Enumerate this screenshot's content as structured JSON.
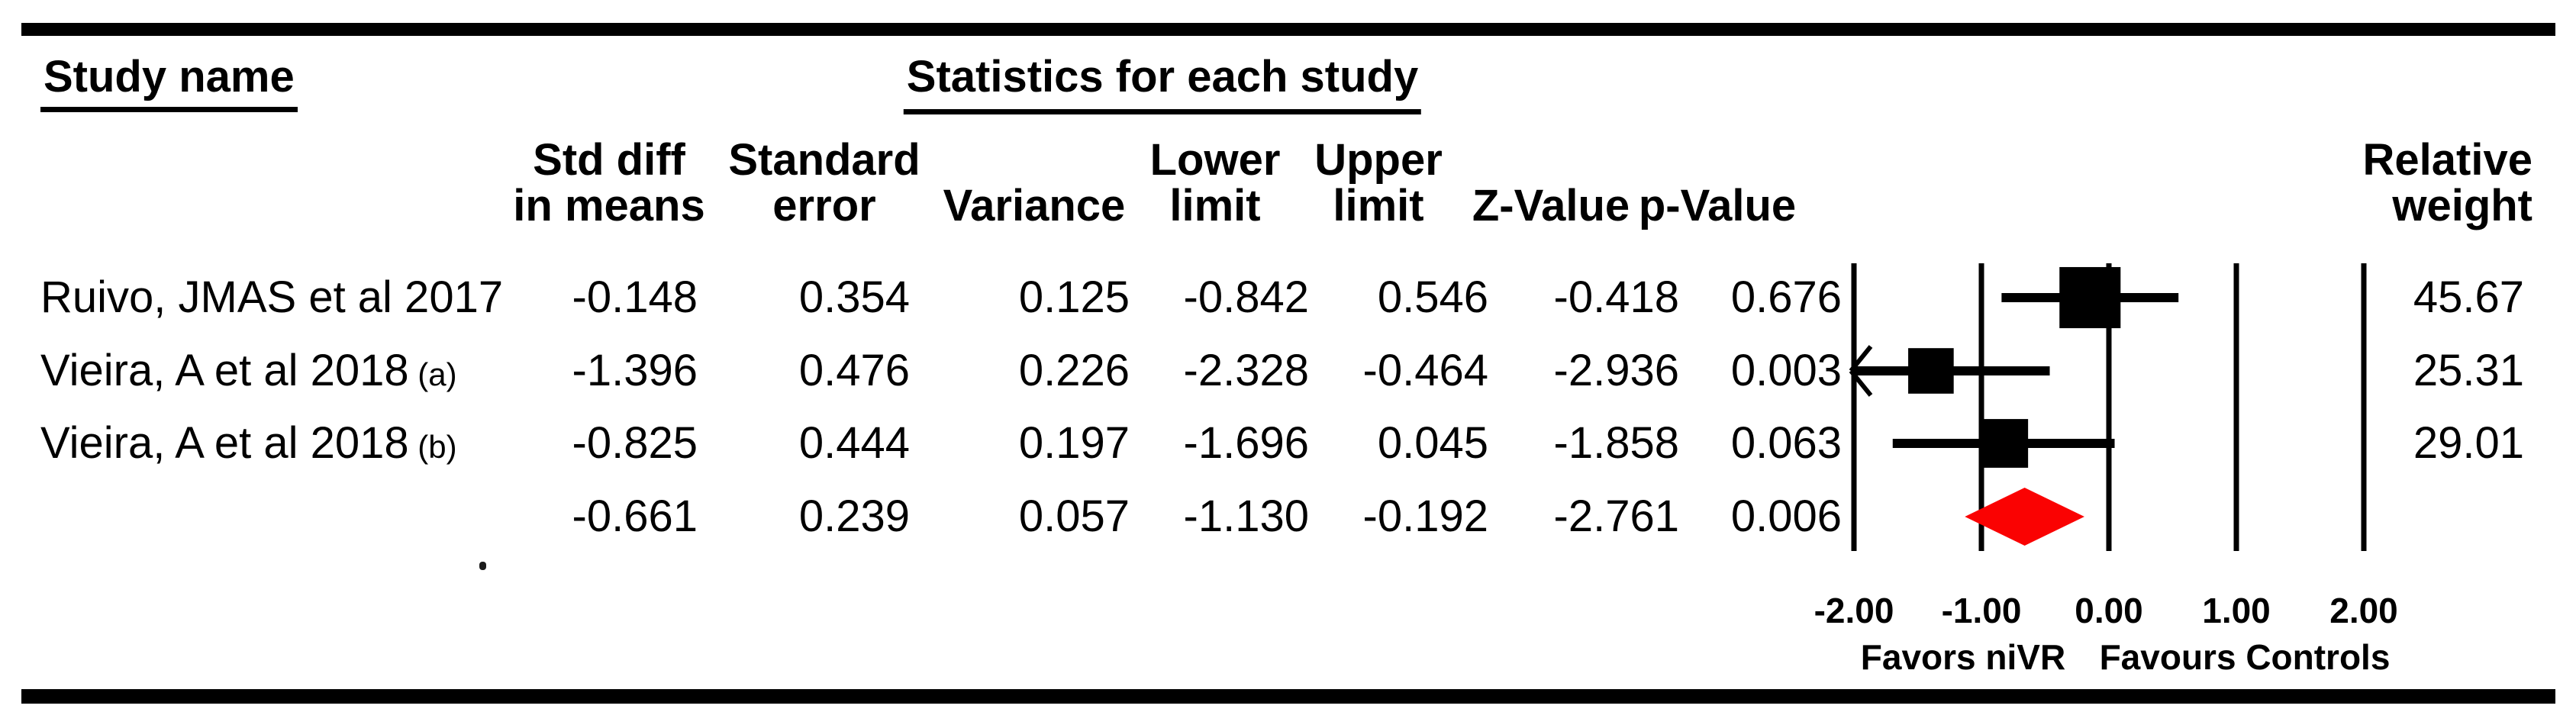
{
  "header": {
    "study_name": "Study name",
    "statistics_title": "Statistics for each study",
    "columns": [
      {
        "id": "std_diff",
        "line1": "Std diff",
        "line2": "in means"
      },
      {
        "id": "std_err",
        "line1": "Standard",
        "line2": "error"
      },
      {
        "id": "variance",
        "line1": "",
        "line2": "Variance"
      },
      {
        "id": "lower",
        "line1": "Lower",
        "line2": "limit"
      },
      {
        "id": "upper",
        "line1": "Upper",
        "line2": "limit"
      },
      {
        "id": "z",
        "line1": "",
        "line2": "Z-Value"
      },
      {
        "id": "p",
        "line1": "",
        "line2": "p-Value"
      },
      {
        "id": "weight",
        "line1": "Relative",
        "line2": "weight"
      }
    ]
  },
  "rows": [
    {
      "study": "Ruivo, JMAS et al 2017",
      "suffix": "",
      "std_diff": "-0.148",
      "std_err": "0.354",
      "variance": "0.125",
      "lower": "-0.842",
      "upper": "0.546",
      "z": "-0.418",
      "p": "0.676",
      "weight": "45.67"
    },
    {
      "study": "Vieira, A et al 2018",
      "suffix": "(a)",
      "std_diff": "-1.396",
      "std_err": "0.476",
      "variance": "0.226",
      "lower": "-2.328",
      "upper": "-0.464",
      "z": "-2.936",
      "p": "0.003",
      "weight": "25.31"
    },
    {
      "study": "Vieira, A et al 2018",
      "suffix": "(b)",
      "std_diff": "-0.825",
      "std_err": "0.444",
      "variance": "0.197",
      "lower": "-1.696",
      "upper": "0.045",
      "z": "-1.858",
      "p": "0.063",
      "weight": "29.01"
    },
    {
      "study": "",
      "suffix": "",
      "std_diff": "-0.661",
      "std_err": "0.239",
      "variance": "0.057",
      "lower": "-1.130",
      "upper": "-0.192",
      "z": "-2.761",
      "p": "0.006",
      "weight": ""
    }
  ],
  "axis": {
    "ticks": [
      "-2.00",
      "-1.00",
      "0.00",
      "1.00",
      "2.00"
    ],
    "tick_values": [
      -2,
      -1,
      0,
      1,
      2
    ],
    "left_label": "Favors niVR",
    "right_label": "Favours Controls"
  },
  "colors": {
    "foreground": "#000000",
    "diamond": "#fa0202"
  },
  "chart_data": {
    "type": "forest",
    "title": "Statistics for each study",
    "effect_measure": "Std diff in means",
    "x_axis": {
      "range": [
        -2,
        2
      ],
      "ticks": [
        -2,
        -1,
        0,
        1,
        2
      ],
      "tick_labels": [
        "-2.00",
        "-1.00",
        "0.00",
        "1.00",
        "2.00"
      ]
    },
    "grid": false,
    "legend_position": "none",
    "studies": [
      {
        "name": "Ruivo, JMAS et al 2017",
        "std_diff_in_means": -0.148,
        "standard_error": 0.354,
        "variance": 0.125,
        "lower_limit": -0.842,
        "upper_limit": 0.546,
        "z_value": -0.418,
        "p_value": 0.676,
        "relative_weight": 45.67
      },
      {
        "name": "Vieira, A et al 2018 (a)",
        "std_diff_in_means": -1.396,
        "standard_error": 0.476,
        "variance": 0.226,
        "lower_limit": -2.328,
        "upper_limit": -0.464,
        "z_value": -2.936,
        "p_value": 0.003,
        "relative_weight": 25.31
      },
      {
        "name": "Vieira, A et al 2018 (b)",
        "std_diff_in_means": -0.825,
        "standard_error": 0.444,
        "variance": 0.197,
        "lower_limit": -1.696,
        "upper_limit": 0.045,
        "z_value": -1.858,
        "p_value": 0.063,
        "relative_weight": 29.01
      }
    ],
    "summary": {
      "std_diff_in_means": -0.661,
      "standard_error": 0.239,
      "variance": 0.057,
      "lower_limit": -1.13,
      "upper_limit": -0.192,
      "z_value": -2.761,
      "p_value": 0.006
    },
    "footer": {
      "left": "Favors niVR",
      "right": "Favours Controls"
    }
  }
}
